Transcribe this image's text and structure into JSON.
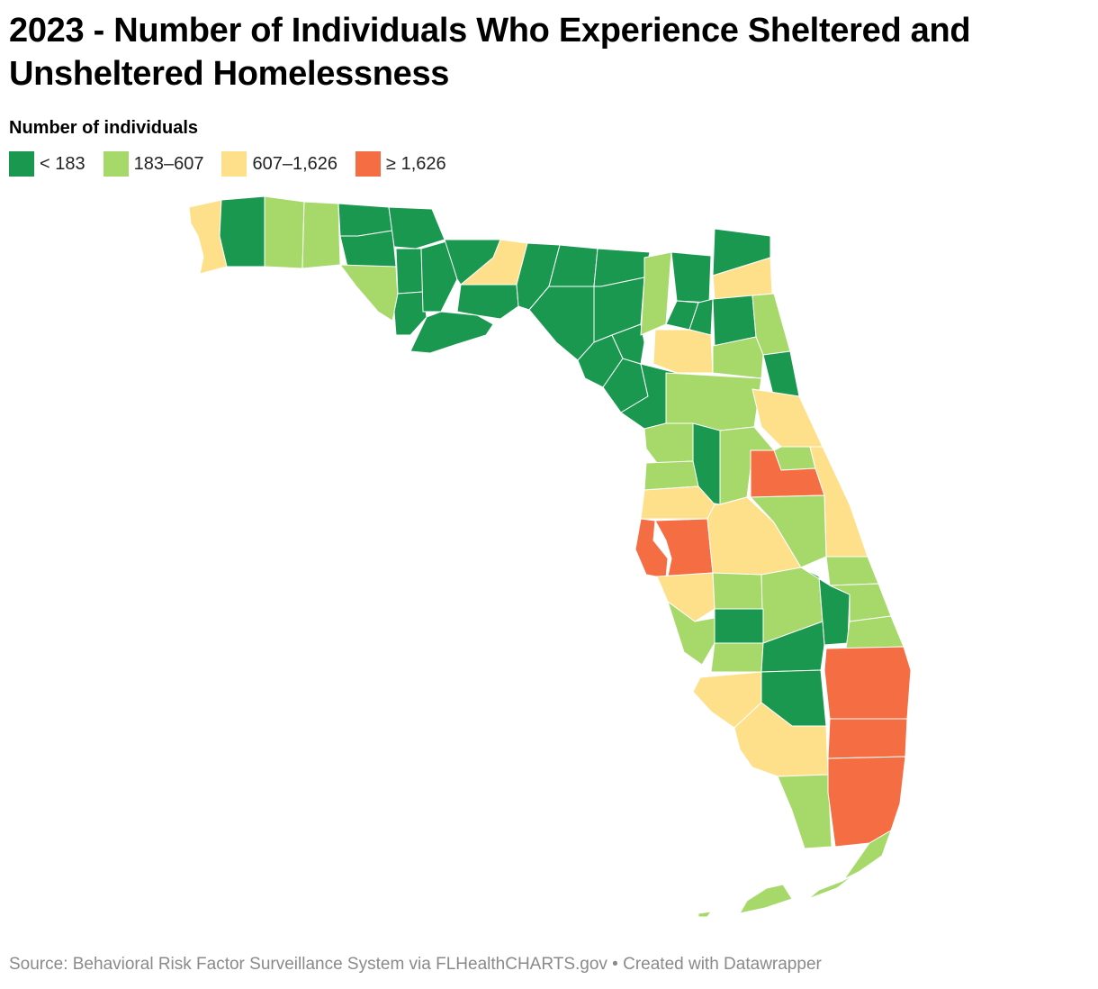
{
  "title": "2023 - Number of Individuals Who Experience Sheltered and Unsheltered Homelessness",
  "legend": {
    "title": "Number of individuals",
    "items": [
      {
        "label": "< 183",
        "color": "#1a9850"
      },
      {
        "label": "183–607",
        "color": "#a6d96a"
      },
      {
        "label": "607–1,626",
        "color": "#fee08b"
      },
      {
        "label": "≥ 1,626",
        "color": "#f46d43"
      }
    ]
  },
  "source": "Source: Behavioral Risk Factor Surveillance System via FLHealthCHARTS.gov • Created with Datawrapper"
}
